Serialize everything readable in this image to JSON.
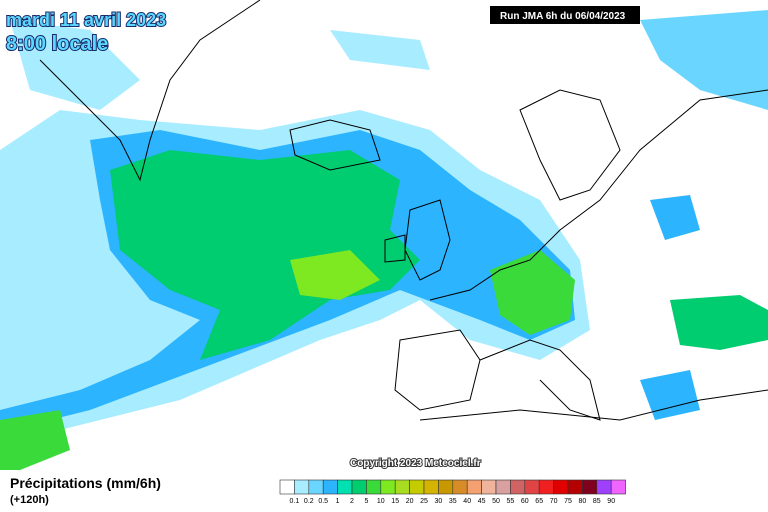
{
  "header": {
    "date": "mardi 11 avril 2023",
    "time": "8:00 locale",
    "run": "Run JMA 6h du 06/04/2023"
  },
  "copyright": "Copyright 2023 Meteociel.fr",
  "legend": {
    "title": "Précipitations (mm/6h)",
    "lead": "(+120h)",
    "labels": [
      "0.1",
      "0.2",
      "0.5",
      "1",
      "2",
      "5",
      "10",
      "15",
      "20",
      "25",
      "30",
      "35",
      "40",
      "45",
      "50",
      "55",
      "60",
      "65",
      "70",
      "75",
      "80",
      "85",
      "90"
    ],
    "colors": [
      "#ffffff",
      "#a8ecff",
      "#6ad6ff",
      "#2cb4ff",
      "#00e0b0",
      "#00cc70",
      "#3ada3a",
      "#7ee820",
      "#a8dc20",
      "#c4cc00",
      "#d4b400",
      "#c89800",
      "#d88c28",
      "#f4a070",
      "#f0b49c",
      "#d8a0a0",
      "#d06464",
      "#e04444",
      "#f02020",
      "#e00000",
      "#b40000",
      "#800020",
      "#a040ff",
      "#f064ff"
    ]
  }
}
